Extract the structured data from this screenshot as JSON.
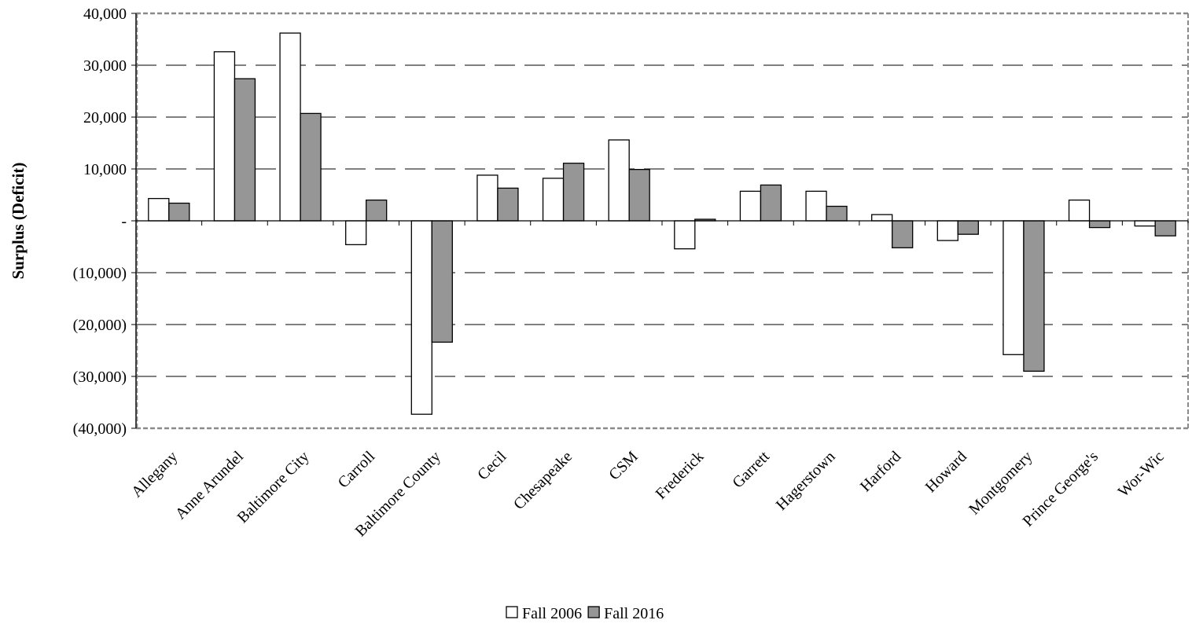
{
  "chart_data": {
    "type": "bar",
    "ylabel": "Surplus (Deficit)",
    "xlabel": "",
    "ylim": [
      -40000,
      40000
    ],
    "ytick_values": [
      40000,
      30000,
      20000,
      10000,
      0,
      -10000,
      -20000,
      -30000,
      -40000
    ],
    "ytick_labels": [
      "40,000",
      "30,000",
      "20,000",
      "10,000",
      "-",
      "(10,000)",
      "(20,000)",
      "(30,000)",
      "(40,000)"
    ],
    "grid": "horizontal dashed",
    "legend_position": "bottom-center",
    "categories": [
      "Allegany",
      "Anne Arundel",
      "Baltimore City",
      "Carroll",
      "Baltimore County",
      "Cecil",
      "Chesapeake",
      "CSM",
      "Frederick",
      "Garrett",
      "Hagerstown",
      "Harford",
      "Howard",
      "Montgomery",
      "Prince George's",
      "Wor-Wic"
    ],
    "series": [
      {
        "name": "Fall 2006",
        "color": "#ffffff",
        "values": [
          4300,
          32600,
          36200,
          -4600,
          -37300,
          8800,
          8200,
          15600,
          -5400,
          5700,
          5700,
          1200,
          -3800,
          -25800,
          4000,
          -1000
        ]
      },
      {
        "name": "Fall 2016",
        "color": "#969696",
        "values": [
          3400,
          27400,
          20700,
          4000,
          -23400,
          6300,
          11100,
          9900,
          300,
          6900,
          2800,
          -5200,
          -2600,
          -29000,
          -1300,
          -2900
        ]
      }
    ]
  }
}
